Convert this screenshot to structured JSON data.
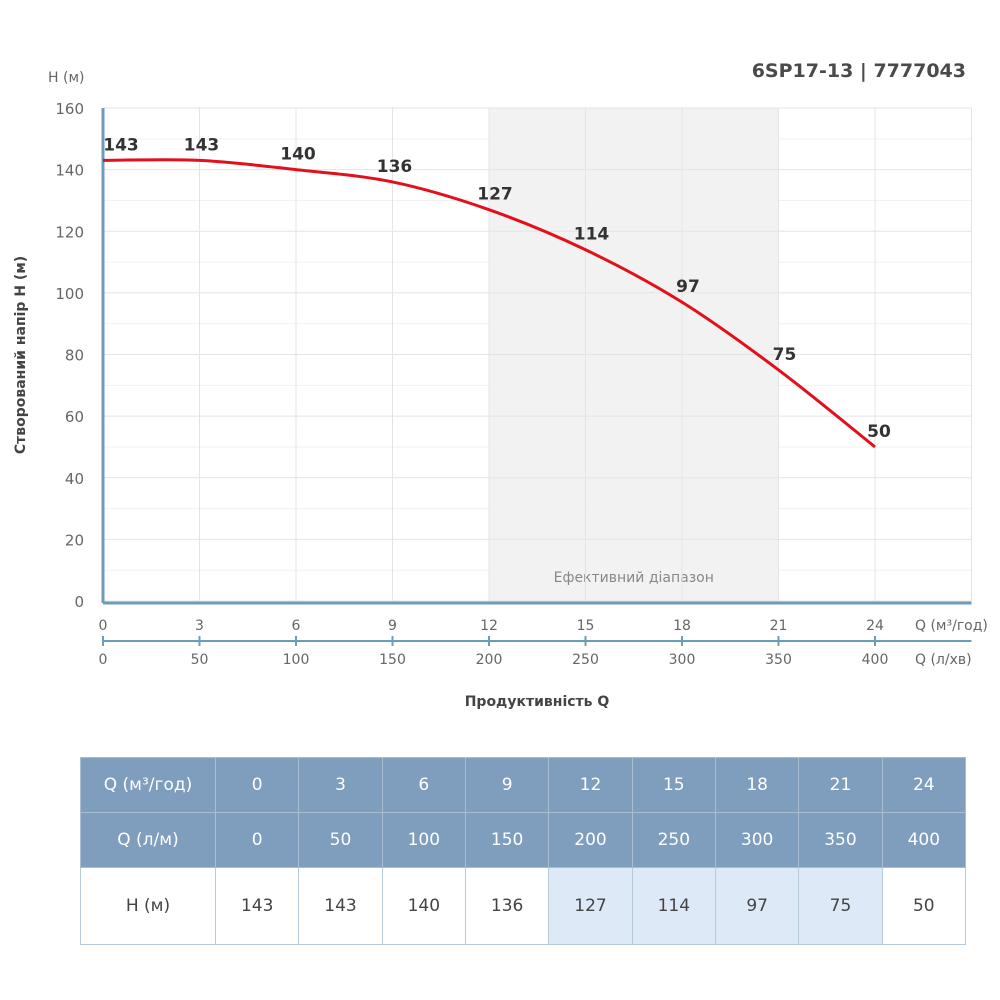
{
  "title": "6SP17-13 | 7777043",
  "chart_data": {
    "type": "line",
    "ylabel": "Створований напір H (м)",
    "yunit": "H (м)",
    "xlabel": "Продуктивність Q",
    "x_unit_primary": "Q (м³/год)",
    "x_unit_secondary": "Q (л/хв)",
    "ylim": [
      0,
      160
    ],
    "yticks": [
      0,
      20,
      40,
      60,
      80,
      100,
      120,
      140,
      160
    ],
    "xlim": [
      0,
      27
    ],
    "xticks": [
      0,
      3,
      6,
      9,
      12,
      15,
      18,
      21,
      24
    ],
    "xticks_secondary": [
      0,
      50,
      100,
      150,
      200,
      250,
      300,
      350,
      400
    ],
    "x": [
      0,
      3,
      6,
      9,
      12,
      15,
      18,
      21,
      24
    ],
    "y": [
      143,
      143,
      140,
      136,
      127,
      114,
      97,
      75,
      50
    ],
    "line_color": "#e3101b",
    "grid": true,
    "efficient_range": {
      "label": "Ефективний діапазон",
      "from": 12,
      "to": 21,
      "color": "#f2f2f2"
    }
  },
  "table": {
    "rows": [
      {
        "label": "Q (м³/год)",
        "values": [
          "0",
          "3",
          "6",
          "9",
          "12",
          "15",
          "18",
          "21",
          "24"
        ]
      },
      {
        "label": "Q (л/м)",
        "values": [
          "0",
          "50",
          "100",
          "150",
          "200",
          "250",
          "300",
          "350",
          "400"
        ]
      },
      {
        "label": "H (м)",
        "values": [
          "143",
          "143",
          "140",
          "136",
          "127",
          "114",
          "97",
          "75",
          "50"
        ]
      }
    ],
    "header_color": "#7f9dbd",
    "highlight_color": "#dde9f7"
  }
}
